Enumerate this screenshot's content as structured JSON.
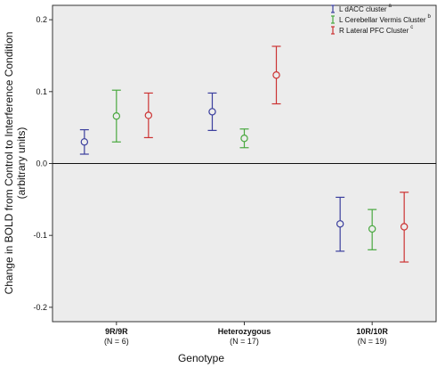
{
  "chart_data": {
    "type": "errorbar",
    "xlabel": "Genotype",
    "ylabel_line1": "Change in BOLD from Control to Interference Condition",
    "ylabel_line2": "(arbitrary units)",
    "ylim": [
      -0.22,
      0.22
    ],
    "yticks": [
      0.2,
      0.1,
      0.0,
      -0.1,
      -0.2
    ],
    "ytick_labels": [
      "0.2",
      "0.1",
      "0.0",
      "-0.1",
      "-0.2"
    ],
    "grid": false,
    "reference_line": 0.0,
    "legend_position": "top-right",
    "categories": [
      {
        "name": "9R/9R",
        "n": "(N = 6)"
      },
      {
        "name": "Heterozygous",
        "n": "(N = 17)"
      },
      {
        "name": "10R/10R",
        "n": "(N = 19)"
      }
    ],
    "series": [
      {
        "name": "L dACC cluster",
        "sup": "a",
        "color": "#3b3f9e",
        "mean": [
          0.03,
          0.072,
          -0.084
        ],
        "lower": [
          0.013,
          0.046,
          -0.122
        ],
        "upper": [
          0.047,
          0.098,
          -0.047
        ]
      },
      {
        "name": "L Cerebellar Vermis Cluster",
        "sup": "b",
        "color": "#49a83f",
        "mean": [
          0.066,
          0.035,
          -0.091
        ],
        "lower": [
          0.03,
          0.022,
          -0.12
        ],
        "upper": [
          0.102,
          0.048,
          -0.064
        ]
      },
      {
        "name": "R Lateral PFC Cluster",
        "sup": "c",
        "color": "#cc3333",
        "mean": [
          0.067,
          0.123,
          -0.088
        ],
        "lower": [
          0.036,
          0.083,
          -0.137
        ],
        "upper": [
          0.098,
          0.163,
          -0.04
        ]
      }
    ]
  }
}
